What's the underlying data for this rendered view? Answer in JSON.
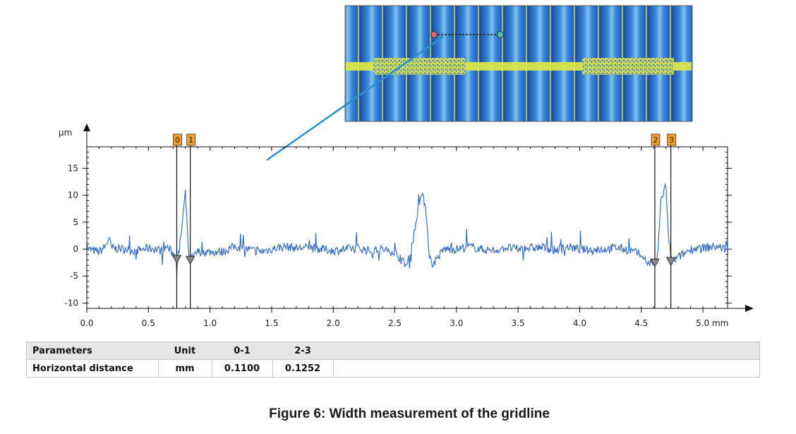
{
  "colors": {
    "series": "#3b6fbf",
    "marker_box": "#f0a030",
    "callout_line": "#2a8fd0",
    "axis": "#111111",
    "table_header_bg": "#e6e6e6"
  },
  "chart_data": {
    "type": "line",
    "y_unit_label": "µm",
    "x_unit_label": "mm",
    "xlim": [
      0,
      5.2
    ],
    "ylim": [
      -11,
      19
    ],
    "x_ticks": [
      0.0,
      0.5,
      1.0,
      1.5,
      2.0,
      2.5,
      3.0,
      3.5,
      4.0,
      4.5,
      5.0
    ],
    "x_tick_labels": [
      "0.0",
      "0.5",
      "1.0",
      "1.5",
      "2.0",
      "2.5",
      "3.0",
      "3.5",
      "4.0",
      "4.5",
      "5.0 mm"
    ],
    "y_ticks": [
      15,
      10,
      5,
      0,
      -5,
      -10
    ],
    "y_tick_labels": [
      "15",
      "10",
      "5",
      "0",
      "-5",
      "-10"
    ],
    "series": [
      {
        "x": [
          0.0,
          0.1,
          0.15,
          0.18,
          0.2,
          0.3,
          0.4,
          0.5,
          0.6,
          0.65,
          0.7,
          0.73,
          0.75,
          0.78,
          0.8,
          0.83,
          0.86,
          0.9,
          1.0,
          1.1,
          1.2,
          1.3,
          1.4,
          1.5,
          1.6,
          1.7,
          1.8,
          1.9,
          2.0,
          2.1,
          2.2,
          2.3,
          2.4,
          2.5,
          2.55,
          2.6,
          2.65,
          2.7,
          2.72,
          2.75,
          2.78,
          2.8,
          2.85,
          2.9,
          3.0,
          3.1,
          3.2,
          3.3,
          3.4,
          3.5,
          3.6,
          3.7,
          3.8,
          3.9,
          4.0,
          4.1,
          4.2,
          4.3,
          4.4,
          4.5,
          4.55,
          4.6,
          4.63,
          4.66,
          4.7,
          4.72,
          4.75,
          4.8,
          4.9,
          5.0,
          5.1,
          5.2
        ],
        "y": [
          0,
          -0.5,
          0.5,
          2,
          0.2,
          0,
          -0.3,
          0.2,
          -0.2,
          0.4,
          -0.8,
          -1.5,
          -0.5,
          6,
          10.5,
          -2,
          -1.5,
          -0.5,
          -0.5,
          -0.5,
          0.5,
          0,
          -0.5,
          0,
          0.5,
          0.2,
          0.3,
          0,
          -0.3,
          0,
          0.2,
          -0.3,
          0,
          -0.5,
          -2,
          -3,
          2,
          9,
          10,
          8,
          -1,
          -3,
          -1.5,
          0,
          0,
          0.5,
          0,
          -0.3,
          0.3,
          0,
          0.2,
          0.3,
          -0.2,
          0.4,
          0,
          -0.2,
          0,
          0.3,
          -0.2,
          -1,
          -2.5,
          -2.5,
          -2,
          9,
          12,
          2,
          -2.5,
          -1.5,
          0,
          0.2,
          0.5,
          0
        ]
      }
    ],
    "markers": [
      {
        "label": "0",
        "x": 0.73,
        "y": -1.8
      },
      {
        "label": "1",
        "x": 0.84,
        "y": -2
      },
      {
        "label": "2",
        "x": 4.61,
        "y": -2.5
      },
      {
        "label": "3",
        "x": 4.74,
        "y": -2.2
      }
    ]
  },
  "inset": {
    "description_icon": "gridline-microscope-image",
    "measure_start_icon": "red-dot-icon",
    "measure_end_icon": "green-dot-icon"
  },
  "table": {
    "headers": [
      "Parameters",
      "Unit",
      "0-1",
      "2-3",
      ""
    ],
    "rows": [
      [
        "Horizontal distance",
        "mm",
        "0.1100",
        "0.1252",
        ""
      ]
    ]
  },
  "caption": "Figure 6: Width measurement of the gridline"
}
